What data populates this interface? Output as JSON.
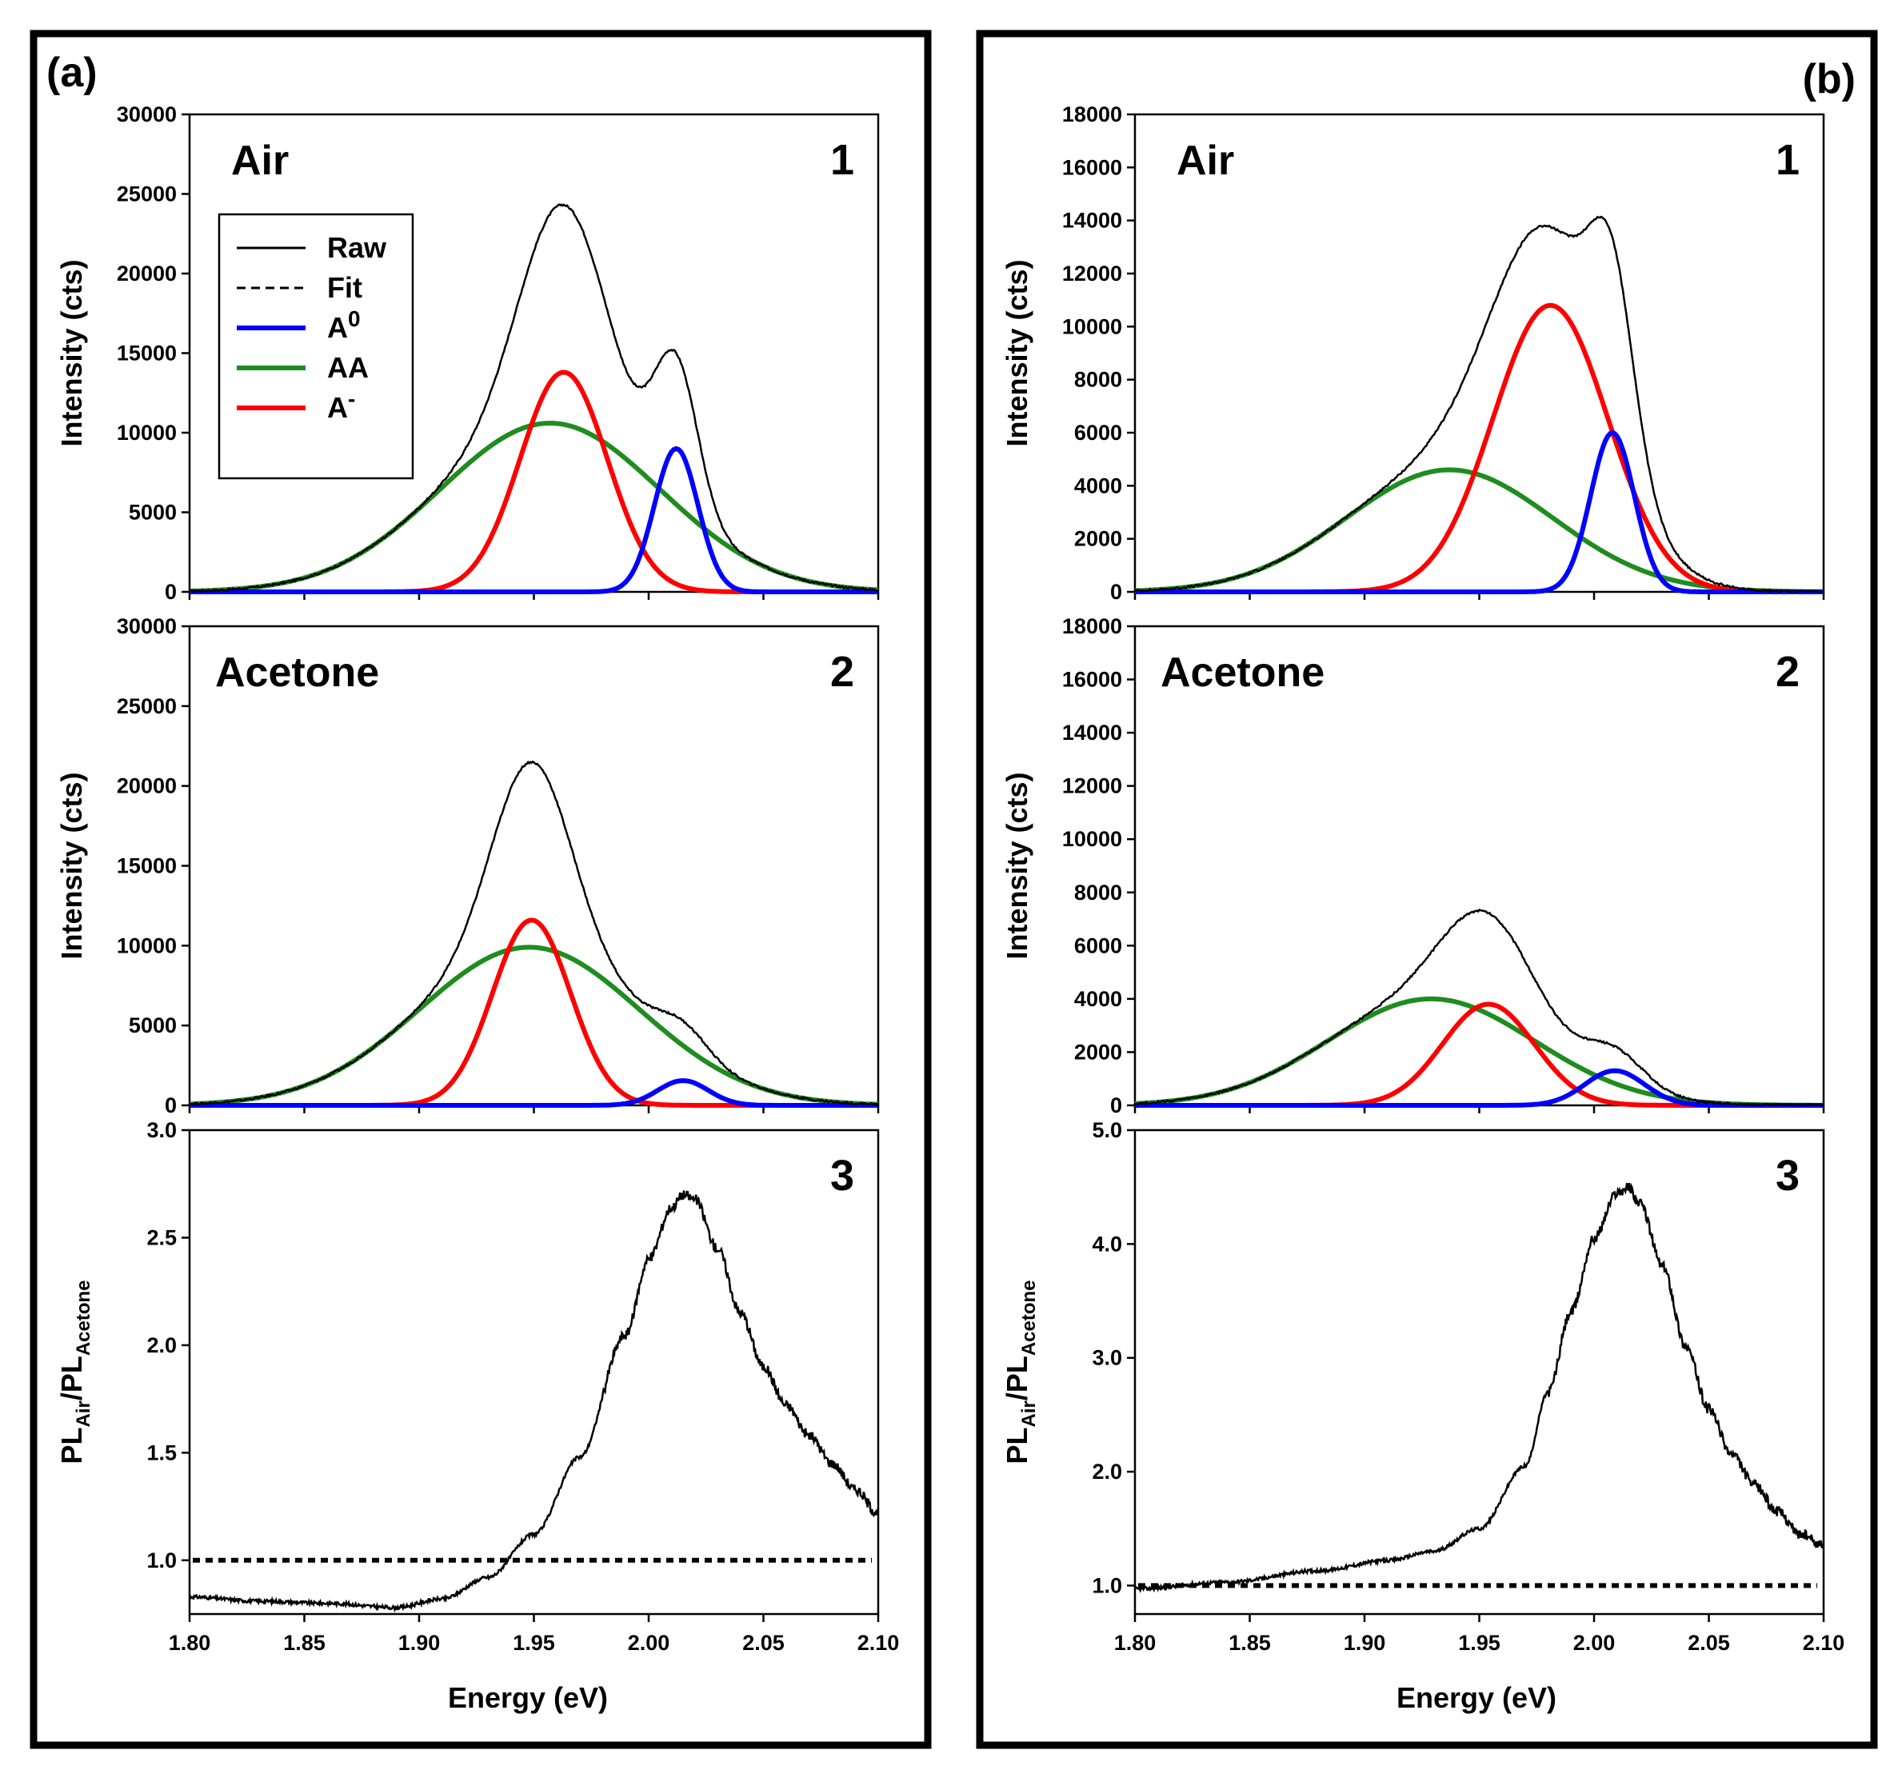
{
  "chart_data": {
    "type": "line",
    "x_label": "Energy (eV)",
    "x_ticks": [
      "1.80",
      "1.85",
      "1.90",
      "1.95",
      "2.00",
      "2.05",
      "2.10"
    ],
    "x_range": [
      1.8,
      2.1
    ],
    "legend": [
      {
        "label": "Raw",
        "style": "solid",
        "color": "#000000"
      },
      {
        "label": "Fit",
        "style": "dashed",
        "color": "#000000"
      },
      {
        "label": "A",
        "sup": "0",
        "color": "#0000ff"
      },
      {
        "label": "AA",
        "sup": "",
        "color": "#1f8c1f"
      },
      {
        "label": "A",
        "sup": "-",
        "color": "#ff0000"
      }
    ],
    "colors": {
      "raw": "#000000",
      "a0": "#0000ff",
      "aa": "#1f8c1f",
      "aminus": "#ff0000"
    },
    "columns": [
      {
        "label": "(a)",
        "panels": [
          {
            "num": "1",
            "condition": "Air",
            "y_label": "Intensity (cts)",
            "y_range": [
              0,
              30000
            ],
            "y_ticks": [
              "0",
              "5000",
              "10000",
              "15000",
              "20000",
              "25000",
              "30000"
            ],
            "components": {
              "a0": {
                "amp": 9000,
                "center": 2.012,
                "sigma": 0.0095
              },
              "aa": {
                "amp": 10600,
                "center": 1.957,
                "sigma": 0.048
              },
              "aminus": {
                "amp": 13800,
                "center": 1.963,
                "sigma": 0.019
              }
            }
          },
          {
            "num": "2",
            "condition": "Acetone",
            "y_label": "Intensity (cts)",
            "y_range": [
              0,
              30000
            ],
            "y_ticks": [
              "0",
              "5000",
              "10000",
              "15000",
              "20000",
              "25000",
              "30000"
            ],
            "components": {
              "a0": {
                "amp": 1550,
                "center": 2.015,
                "sigma": 0.011
              },
              "aa": {
                "amp": 9900,
                "center": 1.948,
                "sigma": 0.048
              },
              "aminus": {
                "amp": 11600,
                "center": 1.949,
                "sigma": 0.017
              }
            }
          },
          {
            "num": "3",
            "y_label": "PL",
            "y_label_sub1": "Air",
            "y_label_mid": "/PL",
            "y_label_sub2": "Acetone",
            "y_range": [
              0.75,
              3.0
            ],
            "y_ticks": [
              "1.0",
              "1.5",
              "2.0",
              "2.5",
              "3.0"
            ],
            "y_tick_values": [
              1.0,
              1.5,
              2.0,
              2.5,
              3.0
            ],
            "ratio_points": [
              [
                1.8,
                0.83
              ],
              [
                1.83,
                0.81
              ],
              [
                1.86,
                0.8
              ],
              [
                1.89,
                0.78
              ],
              [
                1.91,
                0.82
              ],
              [
                1.93,
                0.92
              ],
              [
                1.95,
                1.12
              ],
              [
                1.97,
                1.48
              ],
              [
                1.99,
                2.05
              ],
              [
                2.0,
                2.4
              ],
              [
                2.01,
                2.64
              ],
              [
                2.015,
                2.7
              ],
              [
                2.02,
                2.68
              ],
              [
                2.03,
                2.45
              ],
              [
                2.04,
                2.15
              ],
              [
                2.05,
                1.9
              ],
              [
                2.06,
                1.72
              ],
              [
                2.07,
                1.58
              ],
              [
                2.08,
                1.45
              ],
              [
                2.09,
                1.33
              ],
              [
                2.1,
                1.22
              ]
            ],
            "reference_line": 1.0
          }
        ]
      },
      {
        "label": "(b)",
        "panels": [
          {
            "num": "1",
            "condition": "Air",
            "y_label": "Intensity (cts)",
            "y_range": [
              0,
              18000
            ],
            "y_ticks": [
              "0",
              "2000",
              "4000",
              "6000",
              "8000",
              "10000",
              "12000",
              "14000",
              "16000",
              "18000"
            ],
            "components": {
              "a0": {
                "amp": 6000,
                "center": 2.008,
                "sigma": 0.0095
              },
              "aa": {
                "amp": 4600,
                "center": 1.937,
                "sigma": 0.045
              },
              "aminus": {
                "amp": 10800,
                "center": 1.981,
                "sigma": 0.025
              }
            }
          },
          {
            "num": "2",
            "condition": "Acetone",
            "y_label": "Intensity (cts)",
            "y_range": [
              0,
              18000
            ],
            "y_ticks": [
              "0",
              "2000",
              "4000",
              "6000",
              "8000",
              "10000",
              "12000",
              "14000",
              "16000",
              "18000"
            ],
            "components": {
              "a0": {
                "amp": 1300,
                "center": 2.009,
                "sigma": 0.013
              },
              "aa": {
                "amp": 4000,
                "center": 1.929,
                "sigma": 0.045
              },
              "aminus": {
                "amp": 3800,
                "center": 1.954,
                "sigma": 0.02
              }
            }
          },
          {
            "num": "3",
            "y_label": "PL",
            "y_label_sub1": "Air",
            "y_label_mid": "/PL",
            "y_label_sub2": "Acetone",
            "y_range": [
              0.75,
              5.0
            ],
            "y_ticks": [
              "1.0",
              "2.0",
              "3.0",
              "4.0",
              "5.0"
            ],
            "y_tick_values": [
              1.0,
              2.0,
              3.0,
              4.0,
              5.0
            ],
            "ratio_points": [
              [
                1.8,
                0.97
              ],
              [
                1.84,
                1.03
              ],
              [
                1.88,
                1.13
              ],
              [
                1.91,
                1.22
              ],
              [
                1.93,
                1.3
              ],
              [
                1.95,
                1.5
              ],
              [
                1.97,
                2.05
              ],
              [
                1.98,
                2.7
              ],
              [
                1.99,
                3.4
              ],
              [
                2.0,
                4.05
              ],
              [
                2.01,
                4.45
              ],
              [
                2.015,
                4.5
              ],
              [
                2.02,
                4.35
              ],
              [
                2.03,
                3.8
              ],
              [
                2.04,
                3.1
              ],
              [
                2.05,
                2.55
              ],
              [
                2.06,
                2.15
              ],
              [
                2.07,
                1.88
              ],
              [
                2.08,
                1.65
              ],
              [
                2.09,
                1.45
              ],
              [
                2.1,
                1.35
              ]
            ],
            "reference_line": 1.0
          }
        ]
      }
    ]
  }
}
